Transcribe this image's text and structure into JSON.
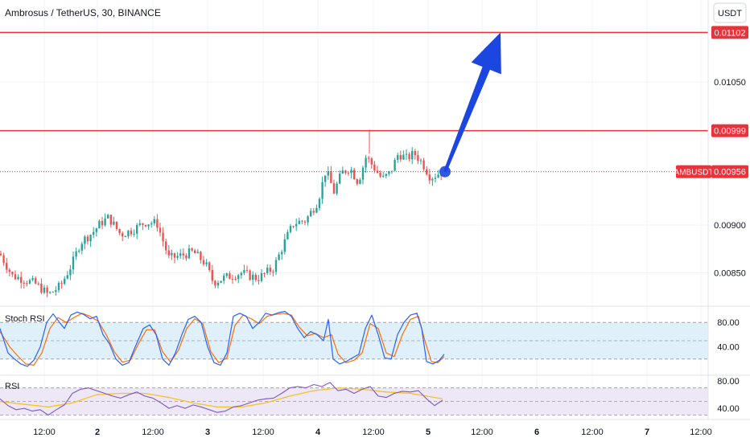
{
  "header": {
    "symbol_title": "Ambrosus / TetherUS, 30, BINANCE",
    "currency_button": "USDT"
  },
  "colors": {
    "up": "#26a69a",
    "down": "#ef5350",
    "resistance": "#e8333b",
    "arrow": "#1b46e0",
    "stoch_k": "#2962ff",
    "stoch_d": "#ff6d00",
    "rsi_line": "#7e57c2",
    "rsi_ma": "#f7c325",
    "stoch_band": "#dff0fb",
    "rsi_band": "#ede7f6"
  },
  "chart_data": {
    "type": "candlestick",
    "title": "Ambrosus / TetherUS, 30, BINANCE",
    "symbol": "AMBUSDT",
    "last_price": 0.00956,
    "price_axis": {
      "ticks": [
        "0.01050",
        "0.00900",
        "0.00850"
      ],
      "range": [
        0.00815,
        0.01136
      ]
    },
    "resistance_levels": [
      {
        "label": "0.01102",
        "value": 0.01102
      },
      {
        "label": "0.00999",
        "value": 0.00999
      }
    ],
    "price_points": [
      [
        0,
        0.0087
      ],
      [
        15,
        0.00847
      ],
      [
        30,
        0.00843
      ],
      [
        45,
        0.00838
      ],
      [
        60,
        0.00827
      ],
      [
        75,
        0.00836
      ],
      [
        90,
        0.0086
      ],
      [
        100,
        0.00882
      ],
      [
        115,
        0.00892
      ],
      [
        125,
        0.00902
      ],
      [
        135,
        0.00908
      ],
      [
        150,
        0.0089
      ],
      [
        165,
        0.00895
      ],
      [
        180,
        0.00903
      ],
      [
        195,
        0.00902
      ],
      [
        210,
        0.00865
      ],
      [
        225,
        0.00868
      ],
      [
        240,
        0.00872
      ],
      [
        255,
        0.0086
      ],
      [
        265,
        0.0084
      ],
      [
        280,
        0.00845
      ],
      [
        300,
        0.0085
      ],
      [
        320,
        0.00844
      ],
      [
        340,
        0.00855
      ],
      [
        355,
        0.00885
      ],
      [
        365,
        0.00902
      ],
      [
        380,
        0.00905
      ],
      [
        395,
        0.00925
      ],
      [
        405,
        0.00958
      ],
      [
        415,
        0.00935
      ],
      [
        425,
        0.00955
      ],
      [
        435,
        0.0096
      ],
      [
        445,
        0.00945
      ],
      [
        455,
        0.00972
      ],
      [
        465,
        0.0096
      ],
      [
        475,
        0.00948
      ],
      [
        485,
        0.00955
      ],
      [
        495,
        0.00975
      ],
      [
        505,
        0.0097
      ],
      [
        515,
        0.00975
      ],
      [
        525,
        0.00965
      ],
      [
        535,
        0.0095
      ],
      [
        550,
        0.00956
      ]
    ],
    "forecast_arrow": {
      "from": 0.00956,
      "to": 0.01102
    },
    "x_axis": {
      "ticks": [
        "12:00",
        "2",
        "12:00",
        "3",
        "12:00",
        "4",
        "12:00",
        "5",
        "12:00",
        "6",
        "12:00",
        "7",
        "12:00"
      ]
    },
    "stoch_rsi": {
      "title": "Stoch RSI",
      "ticks": [
        "80.00",
        "40.00"
      ],
      "bands": [
        20,
        80
      ],
      "range": [
        0,
        100
      ],
      "k_points": [
        [
          0,
          70
        ],
        [
          10,
          30
        ],
        [
          18,
          20
        ],
        [
          26,
          12
        ],
        [
          34,
          8
        ],
        [
          42,
          18
        ],
        [
          50,
          40
        ],
        [
          58,
          80
        ],
        [
          66,
          94
        ],
        [
          74,
          80
        ],
        [
          80,
          70
        ],
        [
          88,
          92
        ],
        [
          96,
          97
        ],
        [
          104,
          93
        ],
        [
          112,
          86
        ],
        [
          120,
          90
        ],
        [
          128,
          60
        ],
        [
          136,
          45
        ],
        [
          144,
          20
        ],
        [
          152,
          10
        ],
        [
          160,
          14
        ],
        [
          168,
          40
        ],
        [
          178,
          70
        ],
        [
          186,
          76
        ],
        [
          194,
          60
        ],
        [
          202,
          20
        ],
        [
          210,
          10
        ],
        [
          218,
          30
        ],
        [
          226,
          60
        ],
        [
          234,
          85
        ],
        [
          242,
          90
        ],
        [
          250,
          80
        ],
        [
          258,
          40
        ],
        [
          266,
          14
        ],
        [
          274,
          10
        ],
        [
          282,
          30
        ],
        [
          290,
          90
        ],
        [
          298,
          95
        ],
        [
          306,
          90
        ],
        [
          314,
          70
        ],
        [
          322,
          80
        ],
        [
          330,
          95
        ],
        [
          338,
          92
        ],
        [
          346,
          96
        ],
        [
          354,
          98
        ],
        [
          362,
          90
        ],
        [
          370,
          70
        ],
        [
          378,
          55
        ],
        [
          386,
          65
        ],
        [
          394,
          60
        ],
        [
          402,
          50
        ],
        [
          408,
          85
        ],
        [
          414,
          20
        ],
        [
          422,
          12
        ],
        [
          430,
          16
        ],
        [
          438,
          22
        ],
        [
          446,
          28
        ],
        [
          454,
          70
        ],
        [
          462,
          92
        ],
        [
          470,
          60
        ],
        [
          478,
          22
        ],
        [
          486,
          20
        ],
        [
          494,
          60
        ],
        [
          502,
          80
        ],
        [
          510,
          92
        ],
        [
          518,
          95
        ],
        [
          524,
          70
        ],
        [
          530,
          16
        ],
        [
          538,
          12
        ],
        [
          546,
          18
        ],
        [
          552,
          28
        ]
      ],
      "d_points": [
        [
          0,
          65
        ],
        [
          12,
          40
        ],
        [
          22,
          25
        ],
        [
          32,
          12
        ],
        [
          42,
          10
        ],
        [
          52,
          30
        ],
        [
          62,
          70
        ],
        [
          72,
          88
        ],
        [
          82,
          80
        ],
        [
          92,
          88
        ],
        [
          102,
          95
        ],
        [
          112,
          90
        ],
        [
          122,
          82
        ],
        [
          132,
          60
        ],
        [
          142,
          32
        ],
        [
          152,
          15
        ],
        [
          162,
          18
        ],
        [
          172,
          45
        ],
        [
          182,
          68
        ],
        [
          192,
          68
        ],
        [
          202,
          32
        ],
        [
          212,
          15
        ],
        [
          222,
          35
        ],
        [
          232,
          70
        ],
        [
          242,
          86
        ],
        [
          252,
          78
        ],
        [
          262,
          32
        ],
        [
          272,
          14
        ],
        [
          282,
          22
        ],
        [
          292,
          75
        ],
        [
          302,
          92
        ],
        [
          312,
          86
        ],
        [
          322,
          78
        ],
        [
          332,
          90
        ],
        [
          342,
          93
        ],
        [
          352,
          95
        ],
        [
          362,
          92
        ],
        [
          372,
          72
        ],
        [
          382,
          58
        ],
        [
          392,
          62
        ],
        [
          402,
          55
        ],
        [
          412,
          60
        ],
        [
          420,
          28
        ],
        [
          430,
          14
        ],
        [
          440,
          18
        ],
        [
          450,
          30
        ],
        [
          460,
          78
        ],
        [
          470,
          70
        ],
        [
          480,
          30
        ],
        [
          490,
          24
        ],
        [
          500,
          60
        ],
        [
          510,
          85
        ],
        [
          520,
          90
        ],
        [
          528,
          50
        ],
        [
          536,
          16
        ],
        [
          544,
          14
        ],
        [
          552,
          24
        ]
      ]
    },
    "rsi": {
      "title": "RSI",
      "ticks": [
        "80.00",
        "40.00"
      ],
      "bands": [
        30,
        70
      ],
      "range": [
        26,
        85
      ],
      "rsi_points": [
        [
          0,
          54
        ],
        [
          10,
          44
        ],
        [
          20,
          38
        ],
        [
          30,
          40
        ],
        [
          40,
          36
        ],
        [
          50,
          38
        ],
        [
          60,
          30
        ],
        [
          70,
          38
        ],
        [
          80,
          45
        ],
        [
          90,
          62
        ],
        [
          100,
          68
        ],
        [
          110,
          70
        ],
        [
          120,
          66
        ],
        [
          130,
          62
        ],
        [
          140,
          58
        ],
        [
          150,
          55
        ],
        [
          160,
          60
        ],
        [
          170,
          64
        ],
        [
          180,
          58
        ],
        [
          190,
          55
        ],
        [
          200,
          48
        ],
        [
          210,
          40
        ],
        [
          220,
          44
        ],
        [
          230,
          40
        ],
        [
          240,
          45
        ],
        [
          250,
          42
        ],
        [
          260,
          38
        ],
        [
          270,
          34
        ],
        [
          280,
          36
        ],
        [
          290,
          42
        ],
        [
          300,
          44
        ],
        [
          310,
          48
        ],
        [
          320,
          52
        ],
        [
          330,
          54
        ],
        [
          340,
          55
        ],
        [
          350,
          62
        ],
        [
          360,
          70
        ],
        [
          370,
          72
        ],
        [
          380,
          70
        ],
        [
          390,
          75
        ],
        [
          400,
          72
        ],
        [
          410,
          78
        ],
        [
          420,
          66
        ],
        [
          430,
          68
        ],
        [
          440,
          62
        ],
        [
          450,
          68
        ],
        [
          460,
          72
        ],
        [
          470,
          58
        ],
        [
          480,
          56
        ],
        [
          490,
          62
        ],
        [
          500,
          65
        ],
        [
          510,
          64
        ],
        [
          520,
          66
        ],
        [
          530,
          54
        ],
        [
          540,
          44
        ],
        [
          550,
          52
        ]
      ],
      "ma_points": [
        [
          0,
          50
        ],
        [
          30,
          46
        ],
        [
          60,
          42
        ],
        [
          90,
          48
        ],
        [
          120,
          60
        ],
        [
          150,
          62
        ],
        [
          180,
          62
        ],
        [
          210,
          56
        ],
        [
          240,
          48
        ],
        [
          270,
          42
        ],
        [
          300,
          42
        ],
        [
          330,
          48
        ],
        [
          360,
          58
        ],
        [
          390,
          66
        ],
        [
          420,
          70
        ],
        [
          450,
          68
        ],
        [
          480,
          64
        ],
        [
          510,
          62
        ],
        [
          530,
          58
        ],
        [
          550,
          54
        ]
      ]
    }
  },
  "labels": {
    "symbol_tag": "AMBUSDT",
    "last_price_tag": "0.00956"
  }
}
